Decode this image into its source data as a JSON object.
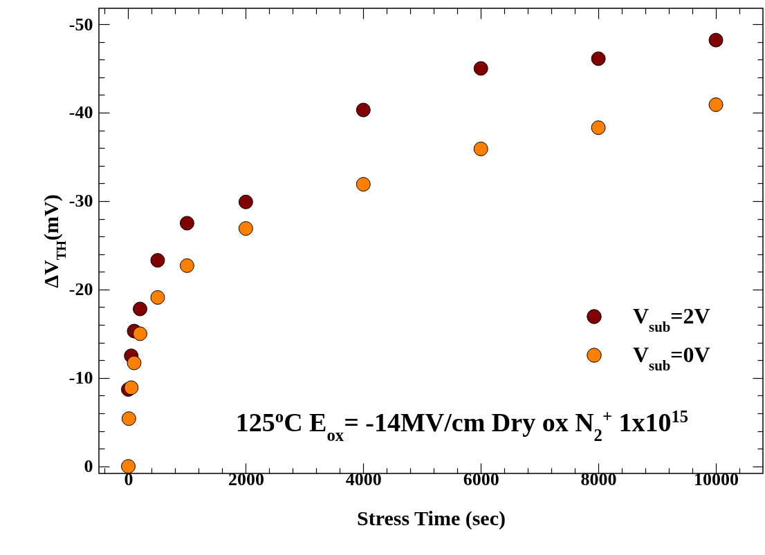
{
  "chart_data": {
    "type": "scatter",
    "xlabel": "Stress Time (sec)",
    "ylabel": "ΔV$_{TH}$(mV)",
    "annotations": [
      "125$^{o}$C E$_{ox}$= -14MV/cm Dry ox N$_{2}$$^{+}$ 1x10$^{15}$"
    ],
    "series": [
      {
        "name": "V$_{sub}$=2V",
        "color": "#7f0000",
        "x": [
          0,
          50,
          100,
          200,
          500,
          1000,
          2000,
          4000,
          6000,
          8000,
          10000
        ],
        "values": [
          -8.7,
          -12.5,
          -15.3,
          -17.8,
          -23.3,
          -27.5,
          -29.9,
          -40.3,
          -45.0,
          -46.1,
          -48.2
        ]
      },
      {
        "name": "V$_{sub}$=0V",
        "color": "#ff8000",
        "x": [
          0,
          10,
          50,
          100,
          200,
          500,
          1000,
          2000,
          4000,
          6000,
          8000,
          10000
        ],
        "values": [
          0,
          -5.4,
          -8.9,
          -11.7,
          -15.0,
          -19.1,
          -22.7,
          -26.9,
          -31.9,
          -35.9,
          -38.3,
          -40.9
        ]
      }
    ],
    "xlim": [
      -500,
      10800
    ],
    "xticks": [
      {
        "value": -400,
        "label": null
      },
      0,
      {
        "value": 400,
        "label": null
      },
      {
        "value": 800,
        "label": null
      },
      {
        "value": 1200,
        "label": null
      },
      {
        "value": 1600,
        "label": null
      },
      2000,
      {
        "value": 2400,
        "label": null
      },
      {
        "value": 2800,
        "label": null
      },
      {
        "value": 3200,
        "label": null
      },
      {
        "value": 3600,
        "label": null
      },
      4000,
      {
        "value": 4400,
        "label": null
      },
      {
        "value": 4800,
        "label": null
      },
      {
        "value": 5200,
        "label": null
      },
      {
        "value": 5600,
        "label": null
      },
      6000,
      {
        "value": 6400,
        "label": null
      },
      {
        "value": 6800,
        "label": null
      },
      {
        "value": 7200,
        "label": null
      },
      {
        "value": 7600,
        "label": null
      },
      8000,
      {
        "value": 8400,
        "label": null
      },
      {
        "value": 8800,
        "label": null
      },
      {
        "value": 9200,
        "label": null
      },
      {
        "value": 9600,
        "label": null
      },
      10000,
      {
        "value": 10400,
        "label": null
      }
    ],
    "ylim": [
      0.8,
      -51.8
    ],
    "yticks": [
      0,
      {
        "value": -2,
        "label": null
      },
      {
        "value": -4,
        "label": null
      },
      {
        "value": -6,
        "label": null
      },
      {
        "value": -8,
        "label": null
      },
      -10,
      {
        "value": -12,
        "label": null
      },
      {
        "value": -14,
        "label": null
      },
      {
        "value": -16,
        "label": null
      },
      {
        "value": -18,
        "label": null
      },
      -20,
      {
        "value": -22,
        "label": null
      },
      {
        "value": -24,
        "label": null
      },
      {
        "value": -26,
        "label": null
      },
      {
        "value": -28,
        "label": null
      },
      -30,
      {
        "value": -32,
        "label": null
      },
      {
        "value": -34,
        "label": null
      },
      {
        "value": -36,
        "label": null
      },
      {
        "value": -38,
        "label": null
      },
      -40,
      {
        "value": -42,
        "label": null
      },
      {
        "value": -44,
        "label": null
      },
      {
        "value": -46,
        "label": null
      },
      {
        "value": -48,
        "label": null
      },
      -50
    ],
    "grid": false,
    "legend": "right",
    "marker": "circle"
  }
}
